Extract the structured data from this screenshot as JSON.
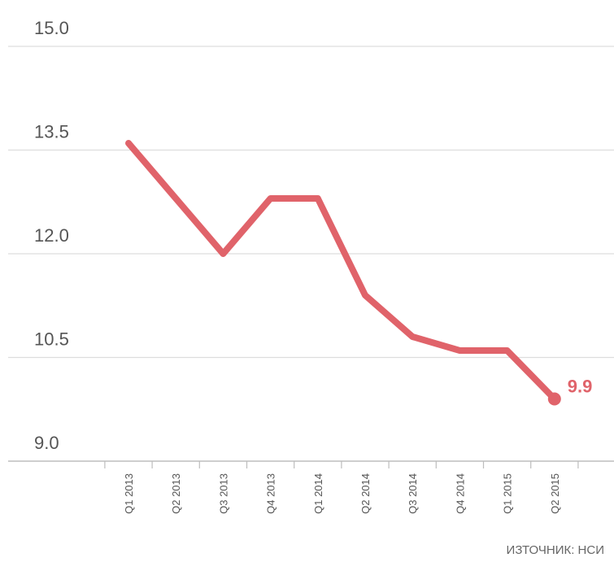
{
  "chart_data": {
    "type": "line",
    "title": "",
    "xlabel": "",
    "ylabel": "",
    "ylim": [
      9.0,
      15.0
    ],
    "yticks": [
      "15.0",
      "13.5",
      "12.0",
      "10.5",
      "9.0"
    ],
    "grid": true,
    "categories": [
      "Q1 2013",
      "Q2 2013",
      "Q3 2013",
      "Q4 2013",
      "Q1 2014",
      "Q2 2014",
      "Q3 2014",
      "Q4 2014",
      "Q1 2015",
      "Q2 2015"
    ],
    "series": [
      {
        "values": [
          13.6,
          12.8,
          12.0,
          12.8,
          12.8,
          11.4,
          10.8,
          10.6,
          10.6,
          9.9
        ],
        "color": "#e0636a"
      }
    ],
    "annotations": [
      {
        "category": "Q2 2015",
        "text": "9.9"
      }
    ]
  },
  "source_note": "ИЗТОЧНИК: НСИ"
}
